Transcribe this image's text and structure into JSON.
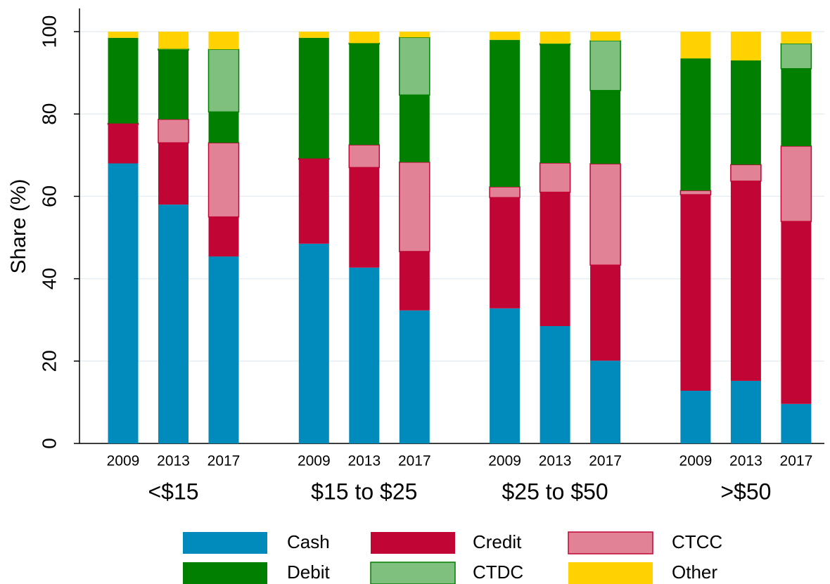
{
  "chart_data": {
    "type": "stacked_bar",
    "y_label": "Share (%)",
    "groups": [
      "<$15",
      "$15 to $25",
      "$25 to $50",
      ">$50"
    ],
    "categories": [
      "2009",
      "2013",
      "2017",
      "2009",
      "2013",
      "2017",
      "2009",
      "2013",
      "2017",
      "2009",
      "2013",
      "2017"
    ],
    "series": [
      {
        "name": "Cash",
        "color": "#008bbc",
        "values": [
          68,
          58,
          45.4,
          48.5,
          42.7,
          32.3,
          32.8,
          28.5,
          20.1,
          12.8,
          15.2,
          9.6
        ]
      },
      {
        "name": "Credit",
        "color": "#c10534",
        "values": [
          9.5,
          15,
          9.6,
          20.5,
          24.3,
          14.3,
          26.9,
          32.5,
          23.2,
          47.6,
          48.5,
          44.3
        ]
      },
      {
        "name": "CTCC",
        "color": "#e18296",
        "stroke": "#c10534",
        "values": [
          0.2,
          5.7,
          18,
          0.2,
          5.5,
          21.7,
          2.6,
          7.1,
          24.6,
          1,
          4,
          18.3
        ]
      },
      {
        "name": "Debit",
        "color": "#007f00",
        "values": [
          20.8,
          16.8,
          7.5,
          29.3,
          24.5,
          16.3,
          35.7,
          28.7,
          17.8,
          32.1,
          25.3,
          18.8
        ]
      },
      {
        "name": "CTDC",
        "color": "#7fc07f",
        "stroke": "#007f00",
        "values": [
          0,
          0.3,
          15.2,
          0,
          0.2,
          14,
          0,
          0.3,
          12.1,
          0,
          0,
          6.1
        ]
      },
      {
        "name": "Other",
        "color": "#ffd200",
        "values": [
          1.5,
          4.2,
          4.3,
          1.5,
          2.8,
          1.4,
          2,
          2.9,
          2.2,
          6.5,
          7,
          2.9
        ]
      }
    ],
    "ylim": [
      0,
      100
    ],
    "yticks": [
      0,
      20,
      40,
      60,
      80,
      100
    ],
    "grid": true
  }
}
